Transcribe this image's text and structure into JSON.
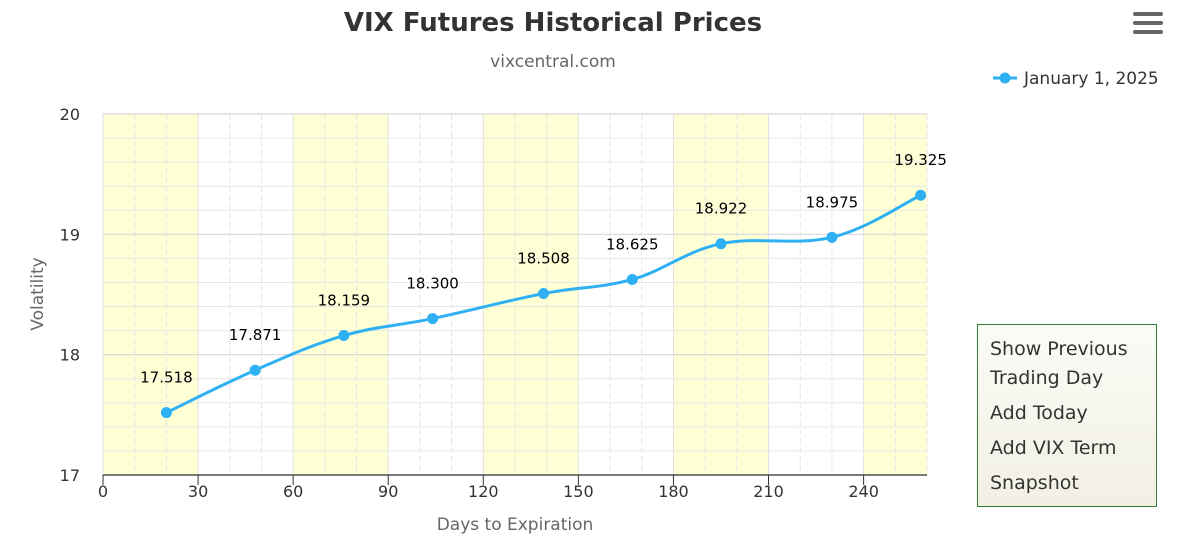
{
  "chart_data": {
    "type": "line",
    "title": "VIX Futures Historical Prices",
    "subtitle": "vixcentral.com",
    "xlabel": "Days to Expiration",
    "ylabel": "Volatility",
    "xlim": [
      0,
      260
    ],
    "ylim": [
      17,
      20
    ],
    "x_ticks": [
      0,
      30,
      60,
      90,
      120,
      150,
      180,
      210,
      240
    ],
    "y_ticks": [
      17,
      18,
      19,
      20
    ],
    "grid": true,
    "legend_position": "top-right",
    "series": [
      {
        "name": "January 1, 2025",
        "color": "#2fb0f2",
        "x": [
          20,
          48,
          76,
          104,
          139,
          167,
          195,
          230,
          258
        ],
        "values": [
          17.518,
          17.871,
          18.159,
          18.3,
          18.508,
          18.625,
          18.922,
          18.975,
          19.325
        ],
        "labels": [
          "17.518",
          "17.871",
          "18.159",
          "18.300",
          "18.508",
          "18.625",
          "18.922",
          "18.975",
          "19.325"
        ]
      }
    ],
    "band_color": "#ffffd6",
    "bands": [
      [
        0,
        30
      ],
      [
        60,
        90
      ],
      [
        120,
        150
      ],
      [
        180,
        210
      ],
      [
        240,
        260
      ]
    ]
  },
  "menu": {
    "icon": "hamburger-menu-icon",
    "items": [
      "Show Previous Trading Day",
      "Add Today",
      "Add VIX Term",
      "Snapshot"
    ]
  }
}
